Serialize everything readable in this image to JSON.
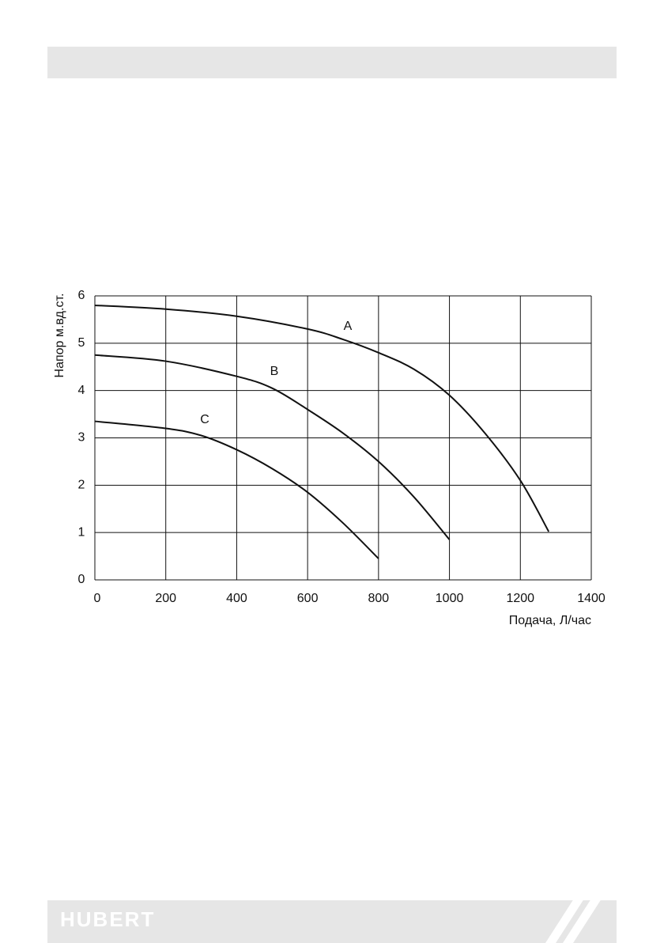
{
  "chart_data": {
    "type": "line",
    "x_label": "Подача, Л/час",
    "y_label": "Напор м.вд.ст.",
    "xlim": [
      0,
      1400
    ],
    "xticks": [
      0,
      200,
      400,
      600,
      800,
      1000,
      1200,
      1400
    ],
    "ylim": [
      0,
      6
    ],
    "yticks": [
      0,
      1,
      2,
      3,
      4,
      5,
      6
    ],
    "grid": true,
    "series": [
      {
        "name": "A",
        "color": "#111111",
        "x": [
          0,
          200,
          400,
          600,
          700,
          800,
          900,
          1000,
          1100,
          1200,
          1280
        ],
        "values": [
          5.8,
          5.72,
          5.57,
          5.3,
          5.08,
          4.8,
          4.45,
          3.9,
          3.1,
          2.1,
          1.02
        ]
      },
      {
        "name": "B",
        "color": "#111111",
        "x": [
          0,
          200,
          400,
          500,
          600,
          700,
          800,
          900,
          1000
        ],
        "values": [
          4.75,
          4.62,
          4.3,
          4.05,
          3.6,
          3.1,
          2.5,
          1.75,
          0.85
        ]
      },
      {
        "name": "C",
        "color": "#111111",
        "x": [
          0,
          200,
          300,
          400,
          500,
          600,
          700,
          800
        ],
        "values": [
          3.35,
          3.2,
          3.05,
          2.75,
          2.35,
          1.85,
          1.2,
          0.45
        ]
      }
    ]
  },
  "footer": {
    "brand": "HUBERT"
  }
}
